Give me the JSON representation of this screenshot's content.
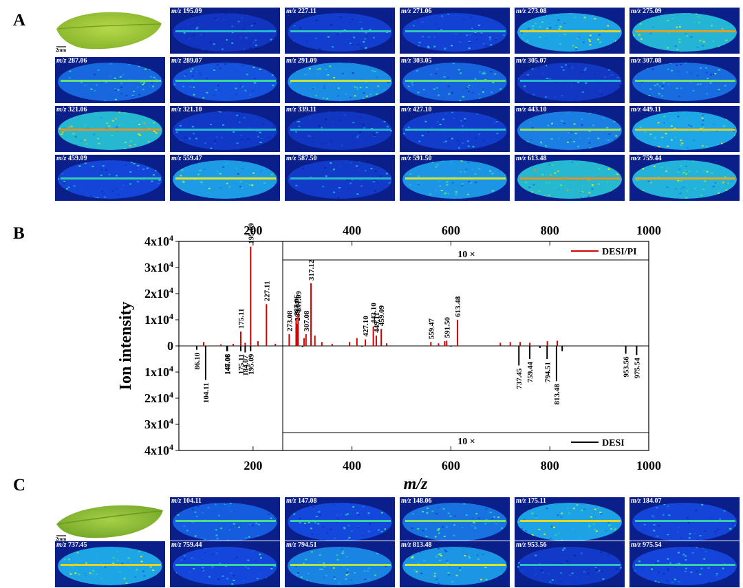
{
  "panels": {
    "a": "A",
    "b": "B",
    "c": "C"
  },
  "scale_label": "2mm",
  "mz_prefix": "m/z",
  "panel_a_tiles": [
    "195.09",
    "227.11",
    "271.06",
    "273.08",
    "275.09",
    "287.06",
    "289.07",
    "291.09",
    "303.05",
    "305.07",
    "307.08",
    "321.06",
    "321.10",
    "339.11",
    "427.10",
    "443.10",
    "449.11",
    "459.09",
    "559.47",
    "587.50",
    "591.50",
    "613.48",
    "759.44"
  ],
  "panel_c_tiles": [
    "104.11",
    "147.08",
    "148.06",
    "175.11",
    "184.07",
    "737.45",
    "759.44",
    "794.51",
    "813.48",
    "953.56",
    "975.54"
  ],
  "chart_data": {
    "type": "bar",
    "xlabel": "m/z",
    "ylabel": "Ion intensity",
    "xlim": [
      50,
      1000
    ],
    "x_ticks": [
      "200",
      "400",
      "600",
      "800",
      "1000"
    ],
    "y_ticks": [
      "4x10",
      "3x10",
      "2x10",
      "1x10",
      "0",
      "1x10",
      "2x10",
      "3x10",
      "4x10"
    ],
    "y_tick_exp": "4",
    "magnification_label": "10 ×",
    "magnification_from_mz": 260,
    "series": [
      {
        "name": "DESI/PI",
        "color": "#d40000",
        "direction": "up",
        "peaks": [
          {
            "mz": 100.0,
            "i": 1500
          },
          {
            "mz": 135.0,
            "i": 600
          },
          {
            "mz": 160.0,
            "i": 800
          },
          {
            "mz": 175.11,
            "i": 5500,
            "label": "175.11"
          },
          {
            "mz": 184.07,
            "i": 1200
          },
          {
            "mz": 195.09,
            "i": 38000,
            "label": "195.09"
          },
          {
            "mz": 210.0,
            "i": 1800
          },
          {
            "mz": 227.11,
            "i": 16000,
            "label": "227.11"
          },
          {
            "mz": 245.0,
            "i": 800
          },
          {
            "mz": 273.08,
            "i": 4500,
            "label": "273.08"
          },
          {
            "mz": 287.06,
            "i": 10500,
            "label": "287.06"
          },
          {
            "mz": 289.07,
            "i": 8500,
            "label": "289.07"
          },
          {
            "mz": 291.09,
            "i": 12000,
            "label": "291.09"
          },
          {
            "mz": 303.05,
            "i": 3000
          },
          {
            "mz": 307.08,
            "i": 4500,
            "label": "307.08"
          },
          {
            "mz": 317.12,
            "i": 24000,
            "label": "317.12"
          },
          {
            "mz": 325.0,
            "i": 4000
          },
          {
            "mz": 339.11,
            "i": 1500
          },
          {
            "mz": 360.0,
            "i": 800
          },
          {
            "mz": 395.0,
            "i": 1500
          },
          {
            "mz": 410.0,
            "i": 3000
          },
          {
            "mz": 427.1,
            "i": 2500,
            "label": "427.10"
          },
          {
            "mz": 443.1,
            "i": 7500,
            "label": "443.10"
          },
          {
            "mz": 449.11,
            "i": 4000,
            "label": "449.11"
          },
          {
            "mz": 459.09,
            "i": 6500,
            "label": "459.09"
          },
          {
            "mz": 470.0,
            "i": 1000
          },
          {
            "mz": 559.47,
            "i": 1500,
            "label": "559.47"
          },
          {
            "mz": 575.0,
            "i": 1000
          },
          {
            "mz": 587.5,
            "i": 1800
          },
          {
            "mz": 591.5,
            "i": 2000,
            "label": "591.50"
          },
          {
            "mz": 613.48,
            "i": 10000,
            "label": "613.48"
          },
          {
            "mz": 700.0,
            "i": 1200
          },
          {
            "mz": 720.0,
            "i": 1500
          },
          {
            "mz": 740.0,
            "i": 1500
          },
          {
            "mz": 759.44,
            "i": 1200
          },
          {
            "mz": 795.0,
            "i": 1800
          },
          {
            "mz": 815.0,
            "i": 2000
          }
        ]
      },
      {
        "name": "DESI",
        "color": "#000000",
        "direction": "down",
        "peaks": [
          {
            "mz": 86.1,
            "i": 1500,
            "label": "86.10"
          },
          {
            "mz": 104.11,
            "i": 13000,
            "label": "104.11"
          },
          {
            "mz": 147.08,
            "i": 2000,
            "label": "147.08"
          },
          {
            "mz": 148.06,
            "i": 2000,
            "label": "148.06"
          },
          {
            "mz": 175.11,
            "i": 2000,
            "label": "175.11"
          },
          {
            "mz": 184.07,
            "i": 2500,
            "label": "184.07"
          },
          {
            "mz": 195.09,
            "i": 2000,
            "label": "195.09"
          },
          {
            "mz": 300.0,
            "i": 400
          },
          {
            "mz": 420.0,
            "i": 300
          },
          {
            "mz": 600.0,
            "i": 300
          },
          {
            "mz": 737.45,
            "i": 7500,
            "label": "737.45"
          },
          {
            "mz": 759.44,
            "i": 5000,
            "label": "759.44"
          },
          {
            "mz": 780.0,
            "i": 800
          },
          {
            "mz": 794.51,
            "i": 5000,
            "label": "794.51"
          },
          {
            "mz": 813.48,
            "i": 13500,
            "label": "813.48"
          },
          {
            "mz": 825.0,
            "i": 2000
          },
          {
            "mz": 953.56,
            "i": 3000,
            "label": "953.56"
          },
          {
            "mz": 975.54,
            "i": 3500,
            "label": "975.54"
          }
        ]
      }
    ],
    "legend_placement": "right"
  }
}
